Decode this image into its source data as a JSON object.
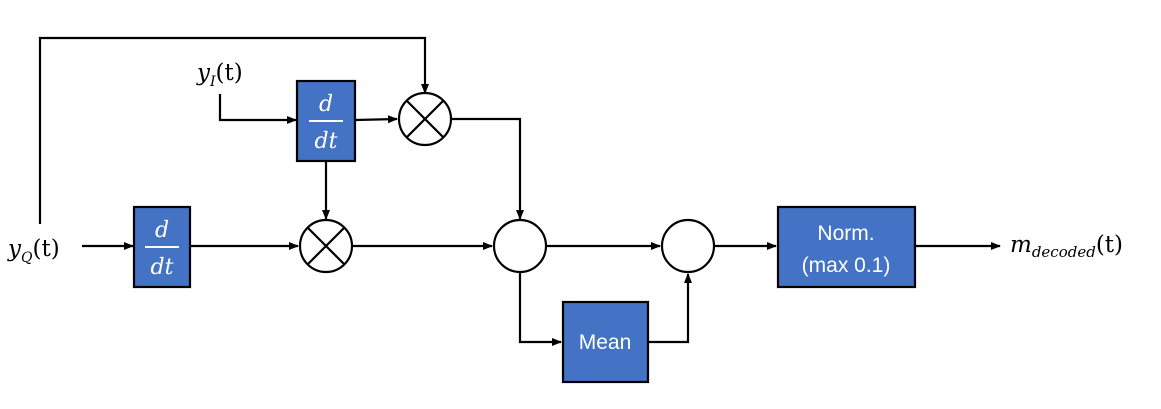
{
  "signals": {
    "yq": {
      "base": "y",
      "sub": "Q",
      "arg": "(t)"
    },
    "yi": {
      "base": "y",
      "sub": "I",
      "arg": "(t)"
    },
    "out": {
      "base": "m",
      "sub": "decoded",
      "arg": "(t)"
    }
  },
  "blocks": {
    "deriv_top": {
      "num": "d",
      "den": "dt"
    },
    "deriv_bottom": {
      "num": "d",
      "den": "dt"
    },
    "mean": {
      "label": "Mean"
    },
    "norm": {
      "line1": "Norm.",
      "line2": "(max 0.1)"
    }
  },
  "nodes": {
    "mult_top": "multiplier",
    "mult_bottom": "multiplier",
    "sum_1": "summing-junction",
    "sum_2": "summing-junction"
  }
}
